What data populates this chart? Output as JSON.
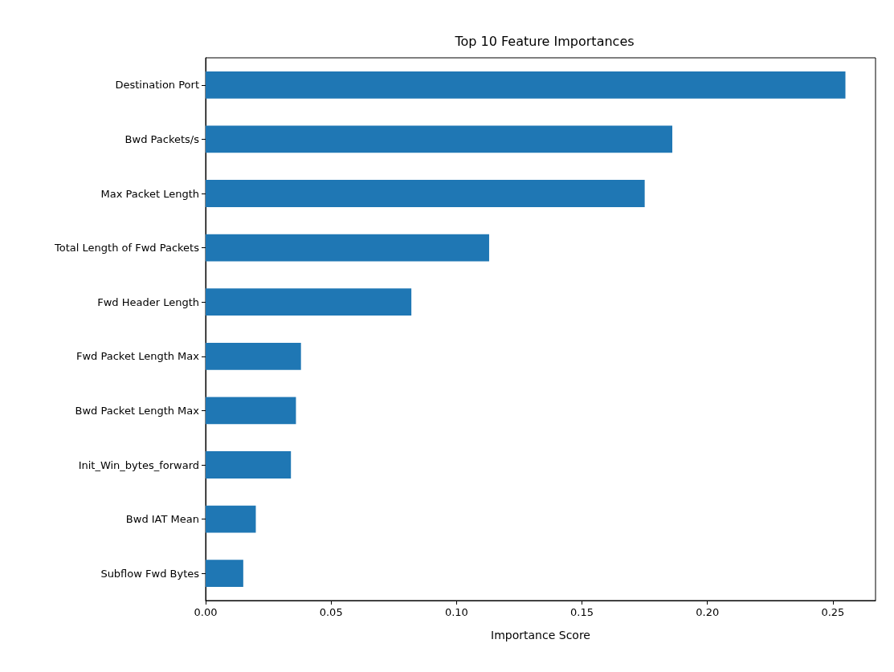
{
  "chart_data": {
    "type": "bar",
    "orientation": "horizontal",
    "title": "Top 10 Feature Importances",
    "xlabel": "Importance Score",
    "categories": [
      "Destination Port",
      "Bwd Packets/s",
      "Max Packet Length",
      "Total Length of Fwd Packets",
      "Fwd Header Length",
      "Fwd Packet Length Max",
      "Bwd Packet Length Max",
      "Init_Win_bytes_forward",
      "Bwd IAT Mean",
      "Subflow Fwd Bytes"
    ],
    "values": [
      0.255,
      0.186,
      0.175,
      0.113,
      0.082,
      0.038,
      0.036,
      0.034,
      0.02,
      0.015
    ],
    "color": "#1f77b4",
    "xlim": [
      0,
      0.267
    ],
    "xticks": [
      {
        "value": 0,
        "label": "0.00"
      },
      {
        "value": 0.05,
        "label": "0.05"
      },
      {
        "value": 0.1,
        "label": "0.10"
      },
      {
        "value": 0.15,
        "label": "0.15"
      },
      {
        "value": 0.2,
        "label": "0.20"
      },
      {
        "value": 0.25,
        "label": "0.25"
      }
    ],
    "grid": false
  }
}
